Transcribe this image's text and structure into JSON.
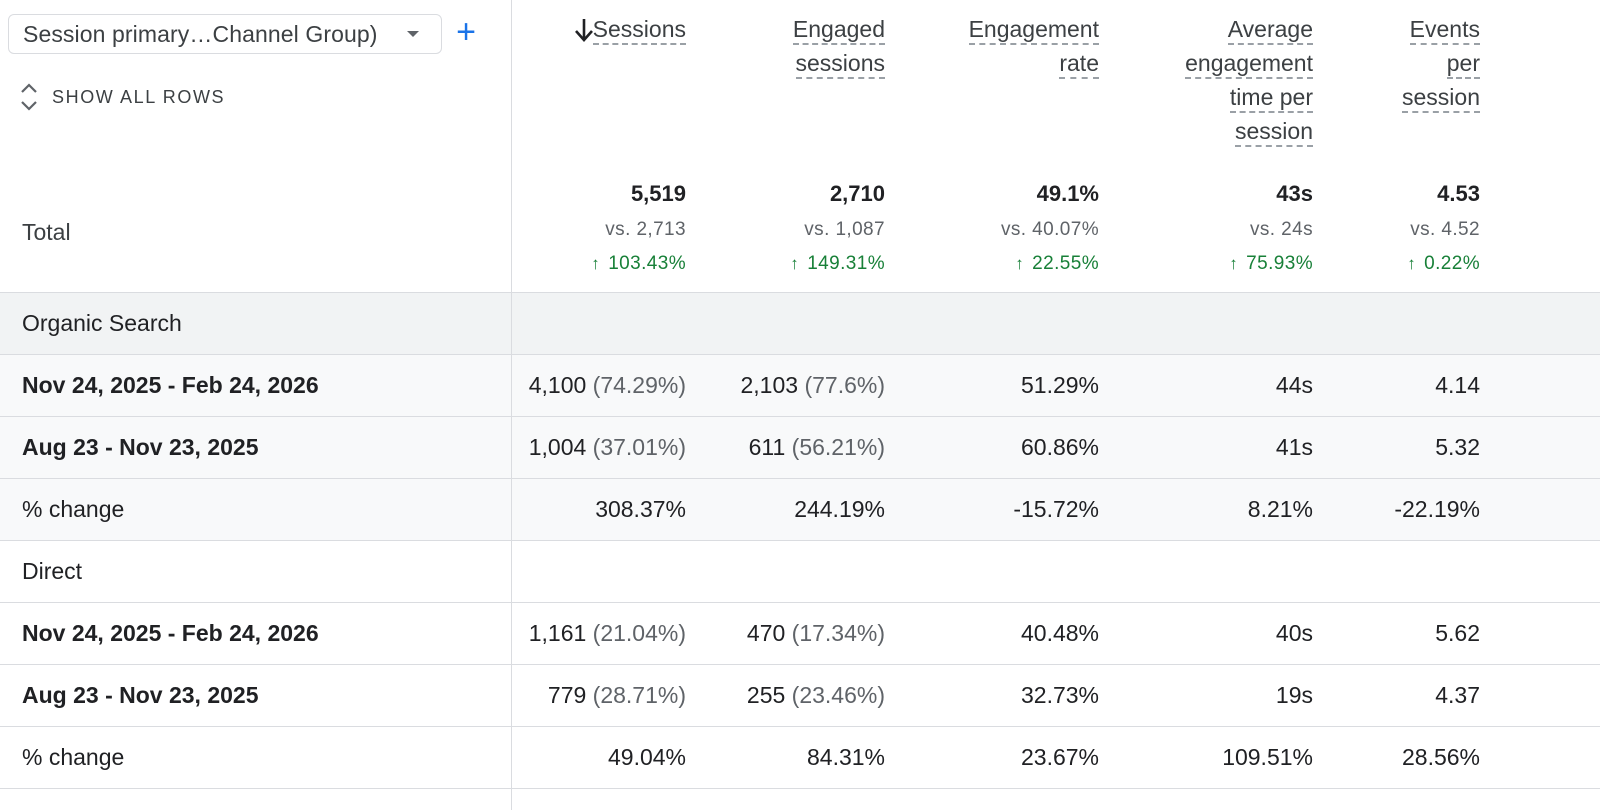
{
  "dimension": {
    "selector_label": "Session primary…Channel Group)",
    "add_label": "+",
    "show_all_rows": "SHOW ALL ROWS"
  },
  "columns": [
    {
      "key": "sessions",
      "lines": [
        "Sessions"
      ],
      "sorted": "desc"
    },
    {
      "key": "engaged_sessions",
      "lines": [
        "Engaged",
        "sessions"
      ]
    },
    {
      "key": "engagement_rate",
      "lines": [
        "Engagement",
        "rate"
      ]
    },
    {
      "key": "avg_engagement_time",
      "lines": [
        "Average",
        "engagement",
        "time per",
        "session"
      ]
    },
    {
      "key": "events_per_session",
      "lines": [
        "Events",
        "per",
        "session"
      ]
    }
  ],
  "total": {
    "label": "Total",
    "values": [
      "5,519",
      "2,710",
      "49.1%",
      "43s",
      "4.53"
    ],
    "vs": [
      "vs. 2,713",
      "vs. 1,087",
      "vs. 40.07%",
      "vs. 24s",
      "vs. 4.52"
    ],
    "delta": [
      "103.43%",
      "149.31%",
      "22.55%",
      "75.93%",
      "0.22%"
    ],
    "delta_color": "#188038"
  },
  "rows": [
    {
      "type": "section",
      "label": "Organic Search"
    },
    {
      "type": "data",
      "label": "Nov 24, 2025 - Feb 24, 2026",
      "cells": [
        {
          "v": "4,100",
          "p": "(74.29%)"
        },
        {
          "v": "2,103",
          "p": "(77.6%)"
        },
        {
          "v": "51.29%"
        },
        {
          "v": "44s"
        },
        {
          "v": "4.14"
        }
      ]
    },
    {
      "type": "data",
      "label": "Aug 23 - Nov 23, 2025",
      "cells": [
        {
          "v": "1,004",
          "p": "(37.01%)"
        },
        {
          "v": "611",
          "p": "(56.21%)"
        },
        {
          "v": "60.86%"
        },
        {
          "v": "41s"
        },
        {
          "v": "5.32"
        }
      ]
    },
    {
      "type": "change",
      "label": "% change",
      "cells": [
        {
          "v": "308.37%"
        },
        {
          "v": "244.19%"
        },
        {
          "v": "-15.72%"
        },
        {
          "v": "8.21%"
        },
        {
          "v": "-22.19%"
        }
      ]
    },
    {
      "type": "section",
      "label": "Direct"
    },
    {
      "type": "data",
      "label": "Nov 24, 2025 - Feb 24, 2026",
      "cells": [
        {
          "v": "1,161",
          "p": "(21.04%)"
        },
        {
          "v": "470",
          "p": "(17.34%)"
        },
        {
          "v": "40.48%"
        },
        {
          "v": "40s"
        },
        {
          "v": "5.62"
        }
      ]
    },
    {
      "type": "data",
      "label": "Aug 23 - Nov 23, 2025",
      "cells": [
        {
          "v": "779",
          "p": "(28.71%)"
        },
        {
          "v": "255",
          "p": "(23.46%)"
        },
        {
          "v": "32.73%"
        },
        {
          "v": "19s"
        },
        {
          "v": "4.37"
        }
      ]
    },
    {
      "type": "change",
      "label": "% change",
      "cells": [
        {
          "v": "49.04%"
        },
        {
          "v": "84.31%"
        },
        {
          "v": "23.67%"
        },
        {
          "v": "109.51%"
        },
        {
          "v": "28.56%"
        }
      ]
    }
  ]
}
